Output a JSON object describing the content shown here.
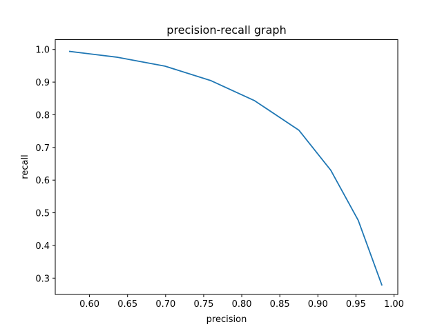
{
  "chart_data": {
    "type": "line",
    "title": "precision-recall graph",
    "xlabel": "precision",
    "ylabel": "recall",
    "xlim": [
      0.555,
      1.005
    ],
    "ylim": [
      0.25,
      1.03
    ],
    "xticks": [
      0.6,
      0.65,
      0.7,
      0.75,
      0.8,
      0.85,
      0.9,
      0.95,
      1.0
    ],
    "xtick_labels": [
      "0.60",
      "0.65",
      "0.70",
      "0.75",
      "0.80",
      "0.85",
      "0.90",
      "0.95",
      "1.00"
    ],
    "yticks": [
      0.3,
      0.4,
      0.5,
      0.6,
      0.7,
      0.8,
      0.9,
      1.0
    ],
    "ytick_labels": [
      "0.3",
      "0.4",
      "0.5",
      "0.6",
      "0.7",
      "0.8",
      "0.9",
      "1.0"
    ],
    "grid": false,
    "series": [
      {
        "color": "#1f77b4",
        "x": [
          0.574,
          0.637,
          0.699,
          0.759,
          0.817,
          0.875,
          0.917,
          0.953,
          0.984
        ],
        "y": [
          0.994,
          0.976,
          0.949,
          0.905,
          0.843,
          0.753,
          0.63,
          0.477,
          0.279
        ]
      }
    ]
  }
}
